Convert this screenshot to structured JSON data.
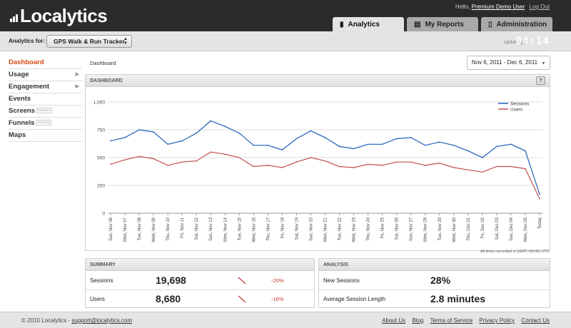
{
  "header": {
    "logo_text": "Localytics",
    "greeting": "Hello,",
    "user_name": "Premium Demo User",
    "logout": "Log Out",
    "tabs": [
      {
        "label": "Analytics",
        "icon": "bar-chart-icon",
        "active": true
      },
      {
        "label": "My Reports",
        "icon": "document-icon",
        "active": false
      },
      {
        "label": "Administration",
        "icon": "phone-icon",
        "active": false
      }
    ]
  },
  "subbar": {
    "analytics_for": "Analytics for:",
    "app_name": "GPS Walk & Run Tracker",
    "updating_in": "updating in",
    "countdown": "04:14"
  },
  "sidebar": {
    "items": [
      {
        "label": "Dashboard",
        "active": true
      },
      {
        "label": "Usage",
        "chevron": true
      },
      {
        "label": "Engagement",
        "chevron": true
      },
      {
        "label": "Events"
      },
      {
        "label": "Screens",
        "badge": "Premium"
      },
      {
        "label": "Funnels",
        "badge": "Premium"
      },
      {
        "label": "Maps"
      }
    ]
  },
  "main": {
    "breadcrumb": "Dashboard",
    "date_range": "Nov 6, 2011 - Dec 6, 2011",
    "panel_title": "DASHBOARD",
    "help_label": "?",
    "timezone_note": "All times recorded in (GMT+00:00) UTC"
  },
  "chart_data": {
    "type": "line",
    "ylim": [
      0,
      1000
    ],
    "yticks": [
      "0",
      "250",
      "500",
      "750",
      "1,000"
    ],
    "legend_position": "top-right",
    "grid": true,
    "categories": [
      "Sun, Nov 06",
      "Mon, Nov 07",
      "Tue, Nov 08",
      "Wed, Nov 09",
      "Thu, Nov 10",
      "Fri, Nov 11",
      "Sat, Nov 12",
      "Sun, Nov 13",
      "Mon, Nov 14",
      "Tue, Nov 15",
      "Wed, Nov 16",
      "Thu, Nov 17",
      "Fri, Nov 18",
      "Sat, Nov 19",
      "Sun, Nov 20",
      "Mon, Nov 21",
      "Tue, Nov 22",
      "Wed, Nov 23",
      "Thu, Nov 24",
      "Fri, Nov 25",
      "Sat, Nov 26",
      "Sun, Nov 27",
      "Mon, Nov 28",
      "Tue, Nov 29",
      "Wed, Nov 30",
      "Thu, Dec 01",
      "Fri, Dec 02",
      "Sat, Dec 03",
      "Sun, Dec 04",
      "Mon, Dec 05",
      "Today"
    ],
    "series": [
      {
        "name": "Sessions",
        "color": "#1f5fb8",
        "values": [
          650,
          680,
          750,
          730,
          620,
          650,
          720,
          830,
          780,
          720,
          610,
          610,
          570,
          670,
          740,
          680,
          600,
          580,
          620,
          620,
          670,
          680,
          610,
          640,
          610,
          560,
          500,
          600,
          620,
          560,
          170
        ]
      },
      {
        "name": "Users",
        "color": "#c0504d",
        "values": [
          440,
          480,
          510,
          490,
          430,
          460,
          470,
          550,
          530,
          500,
          420,
          430,
          410,
          460,
          500,
          470,
          420,
          410,
          440,
          430,
          460,
          460,
          430,
          450,
          410,
          390,
          370,
          420,
          420,
          400,
          130
        ]
      }
    ]
  },
  "summary": {
    "title": "SUMMARY",
    "rows": [
      {
        "label": "Sessions",
        "value": "19,698",
        "change": "-20%"
      },
      {
        "label": "Users",
        "value": "8,680",
        "change": "-16%"
      }
    ]
  },
  "analysis": {
    "title": "ANALYSIS",
    "rows": [
      {
        "label": "New Sessions",
        "value": "28%"
      },
      {
        "label": "Average Session Length",
        "value": "2.8 minutes"
      }
    ]
  },
  "footer": {
    "copyright": "© 2010 Localytics -",
    "email": "support@localytics.com",
    "links": [
      "About Us",
      "Blog",
      "Terms of Service",
      "Privacy Policy",
      "Contact Us"
    ]
  },
  "colors": {
    "accent": "#d9480f",
    "sessions": "#1f5fb8",
    "users": "#c0504d",
    "negative": "#c0392b"
  }
}
